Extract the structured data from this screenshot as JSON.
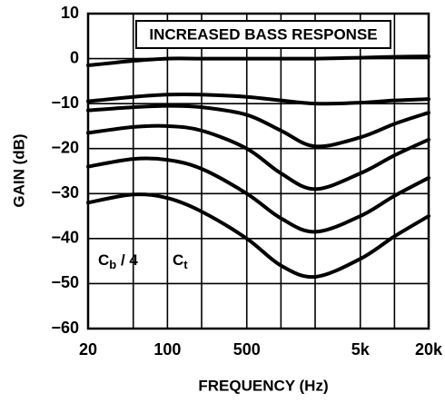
{
  "chart_data": {
    "type": "line",
    "xlabel": "FREQUENCY (Hz)",
    "ylabel": "GAIN (dB)",
    "annotations": [
      {
        "text": "INCREASED BASS RESPONSE"
      },
      {
        "main": "C",
        "sub": "b",
        "rest": " / 4"
      },
      {
        "main": "C",
        "sub": "t"
      }
    ],
    "log_x": true,
    "grid": true,
    "xlim": [
      20,
      20000
    ],
    "xticks": [
      20,
      100,
      500,
      {
        "value": 5000,
        "label": "5k"
      },
      {
        "value": 20000,
        "label": "20k"
      }
    ],
    "x_minor_grid": [
      50,
      200,
      1000,
      2000,
      10000
    ],
    "ylim": [
      -60,
      10
    ],
    "yticks": [
      10,
      0,
      {
        "value": -10,
        "label": "−10"
      },
      {
        "value": -20,
        "label": "−20"
      },
      {
        "value": -30,
        "label": "−30"
      },
      {
        "value": -40,
        "label": "−40"
      },
      {
        "value": -50,
        "label": "−50"
      },
      {
        "value": -60,
        "label": "−60"
      }
    ],
    "x": [
      20,
      50,
      100,
      200,
      500,
      1000,
      2000,
      5000,
      10000,
      20000
    ],
    "series": [
      {
        "color": "#000000",
        "values": [
          -1.5,
          -0.5,
          0,
          0,
          0,
          0,
          0,
          0.2,
          0.4,
          0.5
        ]
      },
      {
        "color": "#000000",
        "values": [
          -9.5,
          -8.5,
          -8,
          -8,
          -8.5,
          -9.3,
          -10,
          -9.8,
          -9.3,
          -9
        ]
      },
      {
        "color": "#000000",
        "values": [
          -11.5,
          -10.8,
          -10.5,
          -10.8,
          -12.5,
          -16,
          -19.5,
          -17.5,
          -14.5,
          -12
        ]
      },
      {
        "color": "#000000",
        "values": [
          -16.5,
          -15.2,
          -15,
          -16,
          -20,
          -25.5,
          -29,
          -25.5,
          -21.5,
          -18
        ]
      },
      {
        "color": "#000000",
        "values": [
          -24,
          -22.3,
          -22.5,
          -24.5,
          -30,
          -35.5,
          -38.5,
          -35,
          -30.5,
          -26.5
        ]
      },
      {
        "color": "#000000",
        "values": [
          -32,
          -30.2,
          -31,
          -34,
          -40,
          -46,
          -48.5,
          -44.5,
          -39.5,
          -35
        ]
      }
    ]
  }
}
